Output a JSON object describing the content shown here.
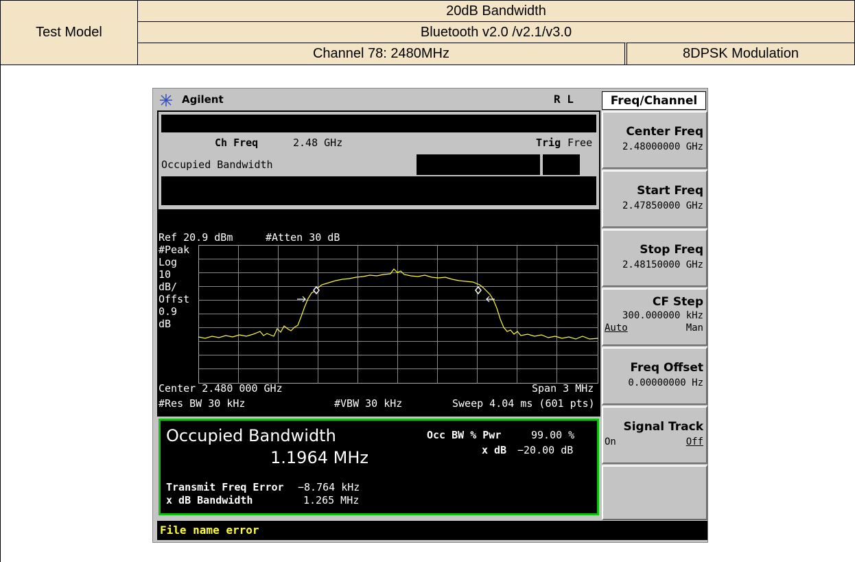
{
  "header": {
    "label": "Test Model",
    "title": "20dB Bandwidth",
    "standard": "Bluetooth v2.0 /v2.1/v3.0",
    "channel": "Channel 78: 2480MHz",
    "modulation": "8DPSK Modulation"
  },
  "analyzer": {
    "brand": "Agilent",
    "status": "R L",
    "ch_freq_label": "Ch Freq",
    "ch_freq": "2.48 GHz",
    "trig_label": "Trig",
    "trig": "Free",
    "mode": "Occupied Bandwidth",
    "ref": "Ref 20.9 dBm",
    "atten": "#Atten 30 dB",
    "scale_labels": [
      "#Peak",
      "Log",
      "10",
      "dB/",
      "Offst",
      "0.9",
      "dB"
    ],
    "center": "Center 2.480 000 GHz",
    "span": "Span 3 MHz",
    "res_bw": "#Res BW 30 kHz",
    "vbw": "#VBW 30 kHz",
    "sweep": "Sweep 4.04 ms (601 pts)",
    "result": {
      "title": "Occupied Bandwidth",
      "value": "1.1964 MHz",
      "occ_label": "Occ BW % Pwr",
      "occ_value": "99.00 %",
      "xdb_label": "x dB",
      "xdb_value": "−20.00 dB",
      "tfe_label": "Transmit Freq Error",
      "tfe_value": "−8.764 kHz",
      "xbw_label": "x dB Bandwidth",
      "xbw_value": "1.265 MHz"
    },
    "message": "File name error"
  },
  "softkeys": {
    "menu": "Freq/Channel",
    "keys": [
      {
        "label": "Center Freq",
        "value": "2.48000000 GHz"
      },
      {
        "label": "Start Freq",
        "value": "2.47850000 GHz"
      },
      {
        "label": "Stop Freq",
        "value": "2.48150000 GHz"
      },
      {
        "label": "CF Step",
        "value": "300.000000 kHz",
        "options": [
          "Auto",
          "Man"
        ]
      },
      {
        "label": "Freq Offset",
        "value": "0.00000000  Hz"
      },
      {
        "label": "Signal Track",
        "options": [
          "On",
          "Off"
        ]
      }
    ]
  }
}
